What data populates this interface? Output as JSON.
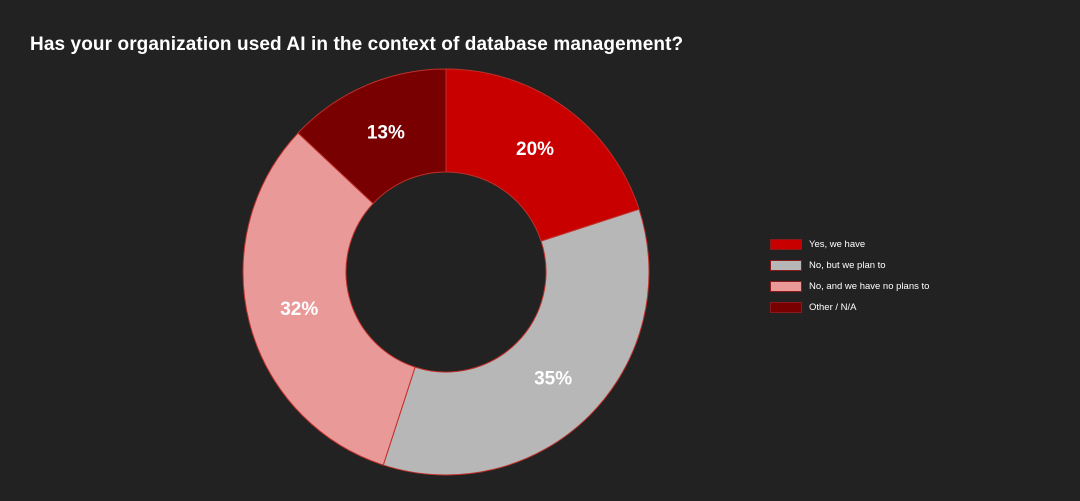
{
  "chart_data": {
    "type": "pie",
    "title": "Has your organization used AI in the context of database management?",
    "categories": [
      "Yes, we have",
      "No, but we plan to",
      "No, and we have no plans to",
      "Other / N/A"
    ],
    "values": [
      20,
      35,
      32,
      13
    ],
    "labels": [
      "20%",
      "35%",
      "32%",
      "13%"
    ],
    "colors": [
      "#c80000",
      "#b7b7b7",
      "#ea9999",
      "#780000"
    ],
    "donut": true,
    "legend_position": "right"
  }
}
